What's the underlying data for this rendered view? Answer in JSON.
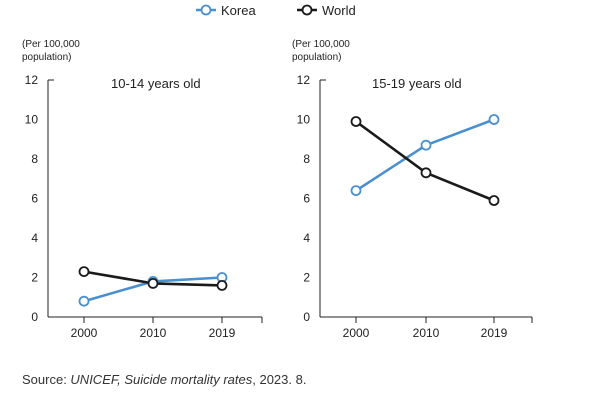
{
  "legend": {
    "korea": "Korea",
    "world": "World"
  },
  "source": {
    "prefix": "Source: ",
    "name": "UNICEF, Suicide mortality rates",
    "suffix": ", 2023. 8."
  },
  "colors": {
    "korea": "#4a8fd0",
    "world": "#1a1a1a",
    "axis": "#222222"
  },
  "chart_data": [
    {
      "type": "line",
      "title": "10-14 years old",
      "ylabel": "(Per 100,000 population)",
      "categories": [
        "2000",
        "2010",
        "2019"
      ],
      "ylim": [
        0,
        12
      ],
      "yticks": [
        "0",
        "2",
        "4",
        "6",
        "8",
        "10",
        "12"
      ],
      "series": [
        {
          "name": "Korea",
          "values": [
            0.8,
            1.8,
            2.0
          ]
        },
        {
          "name": "World",
          "values": [
            2.3,
            1.7,
            1.6
          ]
        }
      ]
    },
    {
      "type": "line",
      "title": "15-19 years old",
      "ylabel": "(Per 100,000 population)",
      "categories": [
        "2000",
        "2010",
        "2019"
      ],
      "ylim": [
        0,
        12
      ],
      "yticks": [
        "0",
        "2",
        "4",
        "6",
        "8",
        "10",
        "12"
      ],
      "series": [
        {
          "name": "Korea",
          "values": [
            6.4,
            8.7,
            10.0
          ]
        },
        {
          "name": "World",
          "values": [
            9.9,
            7.3,
            5.9
          ]
        }
      ]
    }
  ]
}
